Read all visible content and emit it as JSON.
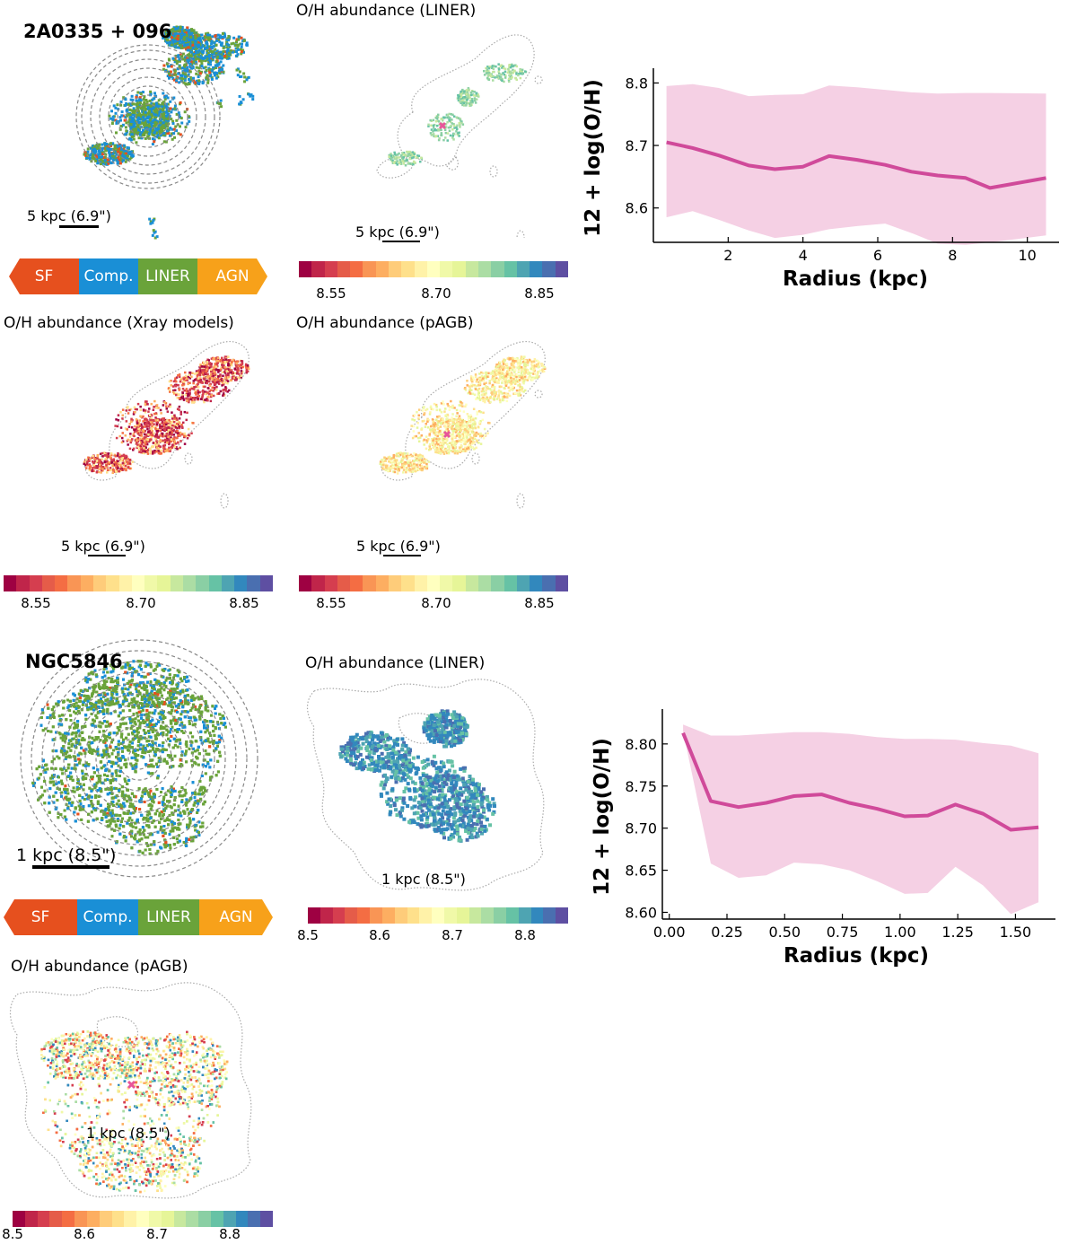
{
  "galaxies": [
    {
      "name": "2A0335 + 096",
      "scale_label": "5 kpc (6.9\")",
      "map_titles": {
        "liner": "O/H abundance (LINER)",
        "xray": "O/H abundance (Xray models)",
        "pagb": "O/H abundance (pAGB)"
      },
      "colorbar_ticks": [
        "8.55",
        "8.70",
        "8.85"
      ]
    },
    {
      "name": "NGC5846",
      "scale_label": "1 kpc (8.5\")",
      "map_titles": {
        "liner": "O/H abundance (LINER)",
        "pagb": "O/H abundance (pAGB)"
      },
      "colorbar_ticks": [
        "8.5",
        "8.6",
        "8.7",
        "8.8"
      ]
    }
  ],
  "bpt_legend": {
    "labels": [
      "SF",
      "Comp.",
      "LINER",
      "AGN"
    ],
    "colors": [
      "#e6501e",
      "#1a8fd6",
      "#6aa33a",
      "#f7a11a"
    ]
  },
  "colormap": [
    "#9e0142",
    "#c0254a",
    "#d53e4f",
    "#e55c49",
    "#f46d43",
    "#f99555",
    "#fdae61",
    "#fecc7a",
    "#fee08b",
    "#fff2a8",
    "#ffffbf",
    "#f0f9a8",
    "#e6f598",
    "#c7e89e",
    "#abdda4",
    "#8acfa4",
    "#66c2a5",
    "#4ea4b2",
    "#3288bd",
    "#4a6fb0",
    "#5e4fa2"
  ],
  "chart_data": [
    {
      "type": "area",
      "title": "",
      "xlabel": "Radius (kpc)",
      "ylabel": "12 + log(O/H)",
      "xlim": [
        0,
        10.8
      ],
      "ylim": [
        8.545,
        8.815
      ],
      "xticks": [
        2,
        4,
        6,
        8,
        10
      ],
      "yticks": [
        8.6,
        8.7,
        8.8
      ],
      "x": [
        0.35,
        1.05,
        1.75,
        2.55,
        3.25,
        4.0,
        4.7,
        5.45,
        6.2,
        6.9,
        7.6,
        8.35,
        9.0,
        10.5
      ],
      "series": [
        {
          "name": "median",
          "color": "#d04a9a",
          "values": [
            8.705,
            8.696,
            8.684,
            8.668,
            8.662,
            8.666,
            8.683,
            8.677,
            8.669,
            8.658,
            8.652,
            8.648,
            8.632,
            8.648
          ]
        },
        {
          "name": "upper",
          "color": "#f5d0e4",
          "values": [
            8.795,
            8.798,
            8.792,
            8.779,
            8.781,
            8.782,
            8.796,
            8.793,
            8.789,
            8.785,
            8.783,
            8.784,
            8.784,
            8.783
          ]
        },
        {
          "name": "lower",
          "color": "#f5d0e4",
          "values": [
            8.585,
            8.595,
            8.581,
            8.564,
            8.552,
            8.557,
            8.566,
            8.571,
            8.575,
            8.56,
            8.543,
            8.541,
            8.545,
            8.556
          ]
        }
      ]
    },
    {
      "type": "area",
      "title": "",
      "xlabel": "Radius (kpc)",
      "ylabel": "12 + log(O/H)",
      "xlim": [
        -0.03,
        1.65
      ],
      "ylim": [
        8.592,
        8.835
      ],
      "xticks": [
        0.0,
        0.25,
        0.5,
        0.75,
        1.0,
        1.25,
        1.5
      ],
      "xtick_labels": [
        "0.00",
        "0.25",
        "0.50",
        "0.75",
        "1.00",
        "1.25",
        "1.50"
      ],
      "yticks": [
        8.6,
        8.65,
        8.7,
        8.75,
        8.8
      ],
      "ytick_labels": [
        "8.60",
        "8.65",
        "8.70",
        "8.75",
        "8.80"
      ],
      "x": [
        0.06,
        0.18,
        0.3,
        0.42,
        0.54,
        0.66,
        0.78,
        0.9,
        1.02,
        1.12,
        1.24,
        1.36,
        1.48,
        1.6
      ],
      "series": [
        {
          "name": "median",
          "color": "#d04a9a",
          "values": [
            8.813,
            8.732,
            8.725,
            8.73,
            8.738,
            8.74,
            8.73,
            8.723,
            8.714,
            8.715,
            8.728,
            8.717,
            8.698,
            8.701
          ]
        },
        {
          "name": "upper",
          "color": "#f5d0e4",
          "values": [
            8.823,
            8.81,
            8.81,
            8.812,
            8.814,
            8.814,
            8.812,
            8.808,
            8.806,
            8.806,
            8.805,
            8.801,
            8.798,
            8.789
          ]
        },
        {
          "name": "lower",
          "color": "#f5d0e4",
          "values": [
            8.815,
            8.658,
            8.641,
            8.644,
            8.659,
            8.657,
            8.65,
            8.637,
            8.622,
            8.623,
            8.654,
            8.632,
            8.598,
            8.612
          ]
        }
      ]
    }
  ]
}
